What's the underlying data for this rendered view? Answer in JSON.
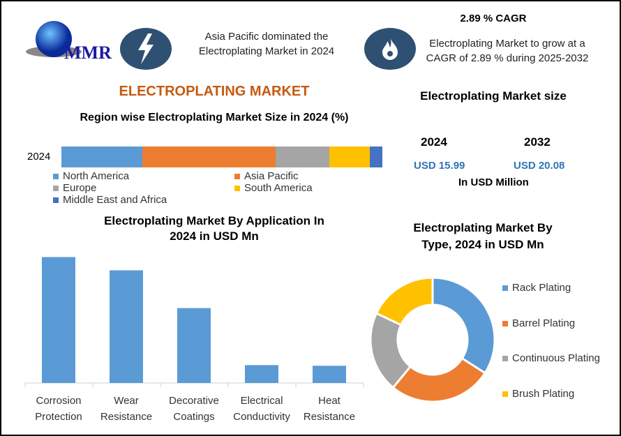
{
  "header": {
    "logo_text": "MMR",
    "lightning_icon": "lightning-bolt",
    "flame_icon": "flame",
    "region_note": "Asia Pacific dominated the Electroplating Market in 2024",
    "cagr_title": "2.89 % CAGR",
    "cagr_note": "Electroplating Market to grow at a CAGR of 2.89 % during 2025-2032"
  },
  "title": "ELECTROPLATING MARKET",
  "market_size": {
    "title": "Electroplating Market size",
    "year1": "2024",
    "value1": "USD 15.99",
    "year2": "2032",
    "value2": "USD 20.08",
    "unit": "In USD Million"
  },
  "chart_data": [
    {
      "type": "bar",
      "orientation": "horizontal-stacked",
      "title": "Region wise Electroplating Market Size in 2024 (%)",
      "categories": [
        "2024"
      ],
      "series": [
        {
          "name": "North America",
          "values": [
            25.2
          ],
          "color": "#5b9bd5"
        },
        {
          "name": "Asia Pacific",
          "values": [
            41.5
          ],
          "color": "#ed7d31"
        },
        {
          "name": "Europe",
          "values": [
            16.7
          ],
          "color": "#a5a5a5"
        },
        {
          "name": "South America",
          "values": [
            12.6
          ],
          "color": "#ffc000"
        },
        {
          "name": "Middle East and Africa",
          "values": [
            4.0
          ],
          "color": "#4472c4"
        }
      ]
    },
    {
      "type": "bar",
      "title": "Electroplating Market By Application In 2024 in USD Mn",
      "categories": [
        "Corrosion Protection",
        "Wear Resistance",
        "Decorative Coatings",
        "Electrical Conductivity",
        "Heat Resistance"
      ],
      "category_lines": [
        [
          "Corrosion",
          "Protection"
        ],
        [
          "Wear",
          "Resistance"
        ],
        [
          "Decorative",
          "Coatings"
        ],
        [
          "Electrical",
          "Conductivity"
        ],
        [
          "Heat",
          "Resistance"
        ]
      ],
      "values": [
        190,
        170,
        113,
        27,
        26
      ],
      "color": "#5b9bd5"
    },
    {
      "type": "pie",
      "donut": true,
      "title": "Electroplating Market By Type, 2024 in USD Mn",
      "labels": [
        "Rack Plating",
        "Barrel Plating",
        "Continuous Plating",
        "Brush Plating"
      ],
      "values": [
        34,
        27,
        21,
        18
      ],
      "colors": [
        "#5b9bd5",
        "#ed7d31",
        "#a5a5a5",
        "#ffc000"
      ],
      "legend": "right"
    }
  ]
}
